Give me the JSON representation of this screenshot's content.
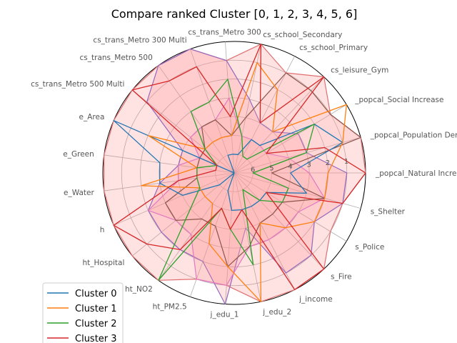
{
  "chart_data": {
    "type": "radar",
    "title": "Compare ranked Cluster [0, 1, 2, 3, 4, 5, 6]",
    "axes": [
      "_popcal_Natural Increase",
      "_popcal_Population Density",
      "_popcal_Social Increase",
      "cs_leisure_Gym",
      "cs_school_Primary",
      "cs_school_Secondary",
      "cs_trans_Metro 300",
      "cs_trans_Metro 300 Multi",
      "cs_trans_Metro 500",
      "cs_trans_Metro 500 Multi",
      "e_Area",
      "e_Green",
      "e_Water",
      "h",
      "ht_Hospital",
      "ht_NO2",
      "ht_PM2.5",
      "j_edu_1",
      "j_edu_2",
      "j_income",
      "s_Fire",
      "s_Police",
      "s_Shelter"
    ],
    "rank_ticks": [
      "1",
      "2",
      "3",
      "4",
      "5",
      "6"
    ],
    "r_range": [
      7,
      0
    ],
    "grid": true,
    "legend_position": "lower-left",
    "series": [
      {
        "name": "Cluster 0",
        "color": "#1f77b4",
        "values": [
          4,
          1,
          2,
          5,
          5,
          6,
          6,
          6,
          7,
          7,
          0,
          3,
          3,
          4,
          6,
          7,
          6,
          5,
          5,
          5,
          5,
          5,
          3
        ]
      },
      {
        "name": "Cluster 1",
        "color": "#ff7f0e",
        "values": [
          2,
          1,
          0,
          4,
          2,
          1,
          5,
          5,
          5,
          5,
          2,
          5,
          2,
          5,
          5,
          5,
          3,
          2,
          0,
          4,
          3,
          2,
          2
        ]
      },
      {
        "name": "Cluster 2",
        "color": "#2ca02c",
        "values": [
          6,
          3,
          2,
          6,
          6,
          5,
          2,
          3,
          3,
          5,
          6,
          5,
          5,
          5,
          4,
          0,
          5,
          4,
          2,
          6,
          5,
          4,
          4
        ]
      },
      {
        "name": "Cluster 3",
        "color": "#d62728",
        "values": [
          0,
          2,
          5,
          0,
          4,
          0,
          4,
          1,
          1,
          0,
          6,
          6,
          4,
          0,
          1,
          2,
          5,
          4,
          5,
          0,
          0,
          5,
          1
        ]
      }
    ],
    "shaded_series": [
      {
        "fill": "#ff7b7b",
        "stroke": "#e07070",
        "values": [
          0,
          0,
          1,
          0,
          1,
          0,
          1,
          0,
          0,
          0,
          0,
          0,
          0,
          0,
          0,
          0,
          1,
          1,
          0,
          0,
          0,
          1,
          1
        ]
      },
      {
        "fill": "#ff8585",
        "stroke": "#9467bd",
        "values": [
          1,
          3,
          3,
          4,
          4,
          3,
          1,
          0,
          0,
          1,
          4,
          4,
          3,
          2,
          2,
          2,
          2,
          0,
          4,
          1,
          1,
          2,
          1
        ]
      },
      {
        "fill": "#ff9a9a",
        "stroke": "#e377c2",
        "values": [
          3,
          4,
          5,
          5,
          5,
          5,
          3,
          4,
          4,
          4,
          5,
          4,
          4,
          2,
          3,
          3,
          1,
          1,
          3,
          3,
          3,
          3,
          2
        ]
      },
      {
        "fill": "#ffb0b0",
        "stroke": "#8c564b",
        "values": [
          5,
          0,
          1,
          1,
          1,
          4,
          5,
          4,
          4,
          5,
          5,
          5,
          5,
          3,
          3,
          4,
          4,
          2,
          3,
          4,
          4,
          4,
          2
        ]
      }
    ]
  }
}
